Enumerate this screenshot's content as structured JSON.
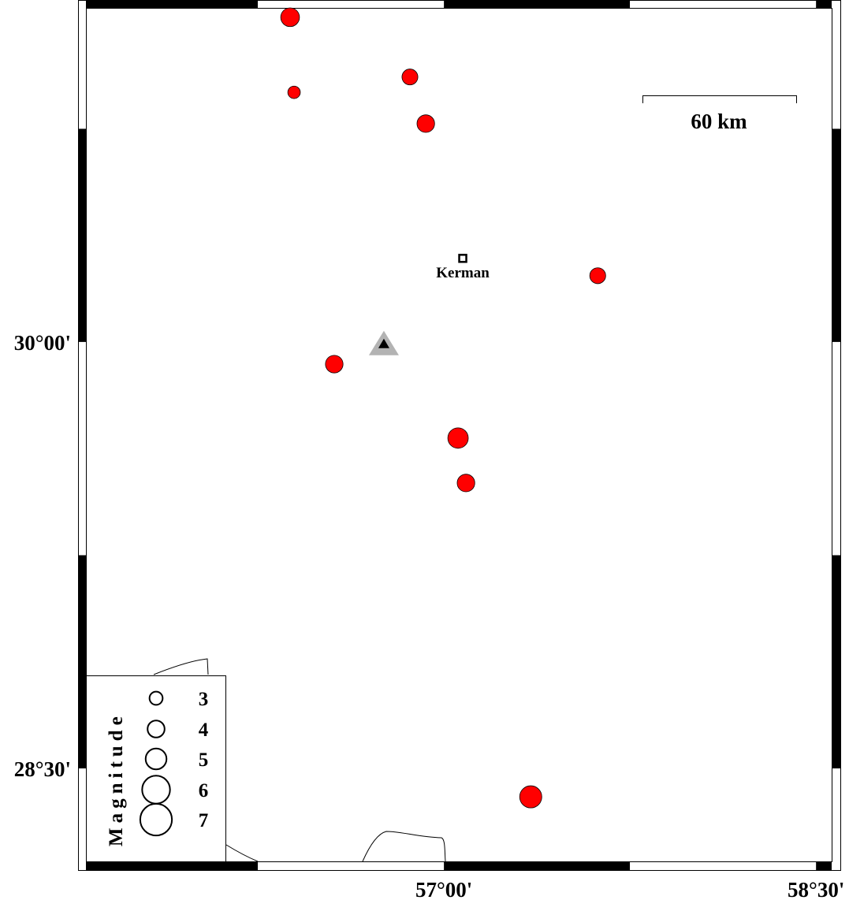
{
  "map": {
    "region": {
      "lon_min": 55.557,
      "lon_max": 58.563,
      "lat_min": 28.173,
      "lat_max": 31.175
    },
    "lon_ticks": [
      {
        "value": 57.0,
        "label": "57°00'"
      },
      {
        "value": 58.5,
        "label": "58°30'"
      }
    ],
    "lat_ticks": [
      {
        "value": 30.0,
        "label": "30°00'"
      },
      {
        "value": 28.5,
        "label": "28°30'"
      }
    ],
    "scale_bar": {
      "label": "60 km",
      "length_km": 60
    },
    "city": {
      "name": "Kerman",
      "lon": 57.076,
      "lat": 30.294,
      "symbol": "square"
    },
    "station": {
      "lon": 56.758,
      "lat": 29.992,
      "symbol": "triangle",
      "fill": "#000000",
      "halo": "#b3b3b3"
    },
    "event_color": "#ff0000",
    "events": [
      {
        "lon": 56.38,
        "lat": 31.142,
        "mag": 3.3
      },
      {
        "lon": 56.396,
        "lat": 30.878,
        "mag": 2.2
      },
      {
        "lon": 56.863,
        "lat": 30.932,
        "mag": 2.8
      },
      {
        "lon": 56.927,
        "lat": 30.768,
        "mag": 3.1
      },
      {
        "lon": 57.62,
        "lat": 30.233,
        "mag": 2.8
      },
      {
        "lon": 56.558,
        "lat": 29.922,
        "mag": 3.1
      },
      {
        "lon": 57.057,
        "lat": 29.662,
        "mag": 3.6
      },
      {
        "lon": 57.089,
        "lat": 29.504,
        "mag": 3.1
      },
      {
        "lon": 57.35,
        "lat": 28.4,
        "mag": 3.9
      }
    ]
  },
  "legend": {
    "title": "Magnitude",
    "items": [
      {
        "label": "3",
        "mag": 3
      },
      {
        "label": "4",
        "mag": 4
      },
      {
        "label": "5",
        "mag": 5
      },
      {
        "label": "6",
        "mag": 6
      },
      {
        "label": "7",
        "mag": 7
      }
    ]
  }
}
